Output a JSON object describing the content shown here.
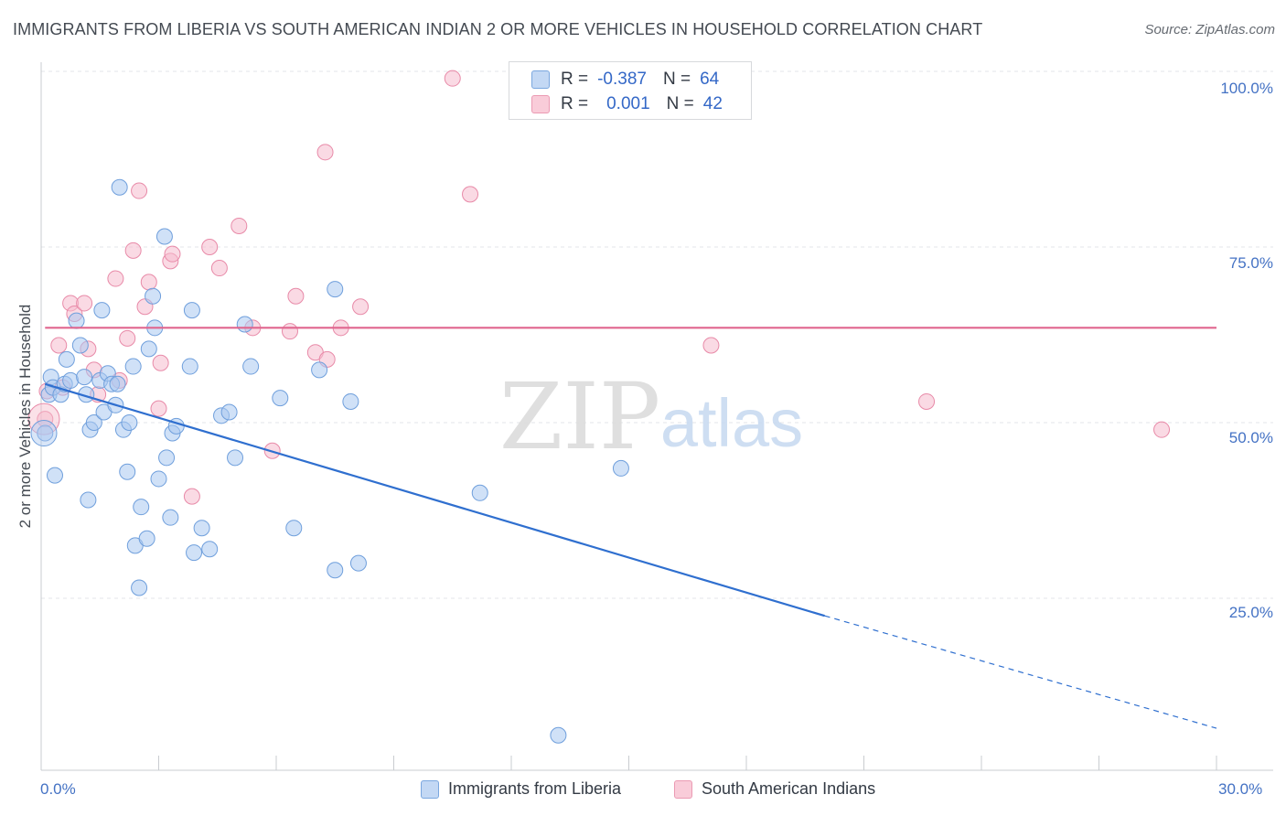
{
  "title": "IMMIGRANTS FROM LIBERIA VS SOUTH AMERICAN INDIAN 2 OR MORE VEHICLES IN HOUSEHOLD CORRELATION CHART",
  "source": "Source: ZipAtlas.com",
  "watermark": {
    "zip": "ZIP",
    "atlas": "atlas"
  },
  "legend": {
    "rows": [
      {
        "r_label": "R =",
        "r_value": "-0.387",
        "n_label": "N =",
        "n_value": "64"
      },
      {
        "r_label": "R =",
        "r_value": "0.001",
        "n_label": "N =",
        "n_value": "42"
      }
    ]
  },
  "bottom_legend": {
    "series_a": "Immigrants from Liberia",
    "series_b": "South American Indians"
  },
  "colors": {
    "blue_fill": "#aac8f0",
    "blue_stroke": "#6f9fdc",
    "blue_line": "#2f6fcf",
    "pink_fill": "#f6bccd",
    "pink_stroke": "#e88aa8",
    "pink_line": "#e0658e",
    "axis_text": "#4472c4"
  },
  "chart_data": {
    "type": "scatter",
    "title": "IMMIGRANTS FROM LIBERIA VS SOUTH AMERICAN INDIAN 2 OR MORE VEHICLES IN HOUSEHOLD CORRELATION CHART",
    "xlabel": "",
    "ylabel": "2 or more Vehicles in Household",
    "xlim": [
      0,
      30
    ],
    "ylim": [
      0,
      102
    ],
    "x_tick_labels": [
      "0.0%",
      "30.0%"
    ],
    "y_ticks": [
      25,
      50,
      75,
      100
    ],
    "y_tick_labels": [
      "25.0%",
      "50.0%",
      "75.0%",
      "100.0%"
    ],
    "grid": true,
    "series": [
      {
        "name": "Immigrants from Liberia",
        "points": [
          [
            0.1,
            48.5
          ],
          [
            0.2,
            54.0
          ],
          [
            0.25,
            56.5
          ],
          [
            0.3,
            55.0
          ],
          [
            0.35,
            42.5
          ],
          [
            0.5,
            54.0
          ],
          [
            0.6,
            55.5
          ],
          [
            0.65,
            59.0
          ],
          [
            0.75,
            56.0
          ],
          [
            0.9,
            64.5
          ],
          [
            1.0,
            61.0
          ],
          [
            1.1,
            56.5
          ],
          [
            1.15,
            54.0
          ],
          [
            1.2,
            39.0
          ],
          [
            1.25,
            49.0
          ],
          [
            1.35,
            50.0
          ],
          [
            1.5,
            56.0
          ],
          [
            1.55,
            66.0
          ],
          [
            1.6,
            51.5
          ],
          [
            1.7,
            57.0
          ],
          [
            1.8,
            55.5
          ],
          [
            1.9,
            52.5
          ],
          [
            1.95,
            55.5
          ],
          [
            2.0,
            83.5
          ],
          [
            2.1,
            49.0
          ],
          [
            2.2,
            43.0
          ],
          [
            2.25,
            50.0
          ],
          [
            2.35,
            58.0
          ],
          [
            2.4,
            32.5
          ],
          [
            2.5,
            26.5
          ],
          [
            2.55,
            38.0
          ],
          [
            2.7,
            33.5
          ],
          [
            2.75,
            60.5
          ],
          [
            2.85,
            68.0
          ],
          [
            2.9,
            63.5
          ],
          [
            3.0,
            42.0
          ],
          [
            3.15,
            76.5
          ],
          [
            3.2,
            45.0
          ],
          [
            3.3,
            36.5
          ],
          [
            3.35,
            48.5
          ],
          [
            3.45,
            49.5
          ],
          [
            3.8,
            58.0
          ],
          [
            3.85,
            66.0
          ],
          [
            3.9,
            31.5
          ],
          [
            4.1,
            35.0
          ],
          [
            4.3,
            32.0
          ],
          [
            4.6,
            51.0
          ],
          [
            4.8,
            51.5
          ],
          [
            4.95,
            45.0
          ],
          [
            5.2,
            64.0
          ],
          [
            5.35,
            58.0
          ],
          [
            6.1,
            53.5
          ],
          [
            6.45,
            35.0
          ],
          [
            7.1,
            57.5
          ],
          [
            7.5,
            69.0
          ],
          [
            7.5,
            29.0
          ],
          [
            7.9,
            53.0
          ],
          [
            8.1,
            30.0
          ],
          [
            11.2,
            40.0
          ],
          [
            14.8,
            43.5
          ],
          [
            13.2,
            5.5
          ]
        ]
      },
      {
        "name": "South American Indians",
        "points": [
          [
            0.1,
            50.5
          ],
          [
            0.15,
            54.5
          ],
          [
            0.45,
            61.0
          ],
          [
            0.55,
            55.0
          ],
          [
            0.75,
            67.0
          ],
          [
            0.85,
            65.5
          ],
          [
            1.1,
            67.0
          ],
          [
            1.2,
            60.5
          ],
          [
            1.35,
            57.5
          ],
          [
            1.45,
            54.0
          ],
          [
            1.9,
            70.5
          ],
          [
            2.0,
            56.0
          ],
          [
            2.2,
            62.0
          ],
          [
            2.35,
            74.5
          ],
          [
            2.5,
            83.0
          ],
          [
            2.65,
            66.5
          ],
          [
            2.75,
            70.0
          ],
          [
            3.0,
            52.0
          ],
          [
            3.05,
            58.5
          ],
          [
            3.3,
            73.0
          ],
          [
            3.35,
            74.0
          ],
          [
            3.85,
            39.5
          ],
          [
            4.3,
            75.0
          ],
          [
            4.55,
            72.0
          ],
          [
            5.05,
            78.0
          ],
          [
            5.4,
            63.5
          ],
          [
            5.9,
            46.0
          ],
          [
            6.35,
            63.0
          ],
          [
            6.5,
            68.0
          ],
          [
            7.0,
            60.0
          ],
          [
            7.25,
            88.5
          ],
          [
            7.3,
            59.0
          ],
          [
            7.65,
            63.5
          ],
          [
            8.15,
            66.5
          ],
          [
            10.5,
            99.0
          ],
          [
            10.95,
            82.5
          ],
          [
            17.1,
            61.0
          ],
          [
            22.6,
            53.0
          ],
          [
            28.6,
            49.0
          ]
        ]
      }
    ],
    "trendlines": [
      {
        "series": "Immigrants from Liberia",
        "x0": 0.1,
        "y0": 55.5,
        "x1": 20.0,
        "y1": 22.5,
        "dashed_to_x": 30.0,
        "dashed_to_y": 6.5
      },
      {
        "series": "South American Indians",
        "x0": 0.1,
        "y0": 63.5,
        "x1": 30.0,
        "y1": 63.5
      }
    ]
  }
}
